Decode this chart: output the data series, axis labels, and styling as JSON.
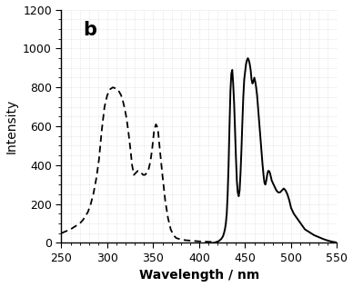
{
  "title": "b",
  "xlabel": "Wavelength / nm",
  "ylabel": "Intensity",
  "xlim": [
    250,
    550
  ],
  "ylim": [
    0,
    1200
  ],
  "xticks": [
    250,
    300,
    350,
    400,
    450,
    500,
    550
  ],
  "yticks": [
    0,
    200,
    400,
    600,
    800,
    1000,
    1200
  ],
  "dashed_x": [
    250,
    255,
    260,
    265,
    270,
    273,
    276,
    279,
    282,
    285,
    288,
    291,
    294,
    297,
    300,
    303,
    306,
    309,
    312,
    315,
    317,
    319,
    321,
    323,
    325,
    327,
    329,
    331,
    333,
    335,
    337,
    339,
    341,
    343,
    345,
    347,
    349,
    351,
    353,
    355,
    357,
    360,
    363,
    366,
    369,
    372,
    375,
    380,
    385,
    390,
    395,
    400,
    405,
    410,
    415,
    420
  ],
  "dashed_y": [
    50,
    60,
    70,
    85,
    100,
    115,
    135,
    160,
    200,
    255,
    330,
    430,
    580,
    700,
    760,
    790,
    800,
    795,
    785,
    760,
    730,
    690,
    640,
    570,
    490,
    400,
    350,
    360,
    370,
    370,
    360,
    350,
    350,
    360,
    380,
    420,
    490,
    580,
    610,
    590,
    490,
    350,
    220,
    130,
    70,
    40,
    25,
    18,
    14,
    12,
    10,
    8,
    7,
    6,
    5,
    4
  ],
  "solid_x": [
    415,
    418,
    420,
    422,
    424,
    426,
    427,
    428,
    429,
    430,
    431,
    432,
    433,
    434,
    435,
    436,
    437,
    438,
    439,
    440,
    441,
    442,
    443,
    444,
    445,
    446,
    447,
    448,
    449,
    450,
    451,
    452,
    453,
    454,
    455,
    456,
    457,
    458,
    459,
    460,
    461,
    462,
    463,
    464,
    465,
    466,
    467,
    468,
    469,
    470,
    471,
    472,
    473,
    474,
    475,
    476,
    477,
    478,
    479,
    480,
    481,
    482,
    484,
    486,
    488,
    490,
    492,
    494,
    496,
    498,
    500,
    503,
    506,
    509,
    512,
    515,
    520,
    525,
    530,
    535,
    540,
    545,
    550
  ],
  "solid_y": [
    0,
    3,
    6,
    12,
    20,
    35,
    50,
    70,
    100,
    150,
    250,
    400,
    600,
    780,
    870,
    890,
    820,
    720,
    580,
    440,
    320,
    260,
    240,
    270,
    360,
    480,
    620,
    750,
    840,
    880,
    920,
    940,
    950,
    940,
    920,
    890,
    840,
    820,
    830,
    850,
    830,
    800,
    760,
    700,
    640,
    580,
    520,
    460,
    400,
    350,
    310,
    300,
    320,
    350,
    370,
    370,
    360,
    340,
    320,
    310,
    300,
    290,
    270,
    260,
    260,
    270,
    280,
    270,
    250,
    220,
    180,
    150,
    130,
    110,
    90,
    70,
    55,
    40,
    30,
    20,
    12,
    6,
    2
  ],
  "background_color": "#ffffff",
  "grid_color": "#c8c8c8",
  "line_color": "#000000",
  "title_fontsize": 15,
  "label_fontsize": 10,
  "tick_fontsize": 9
}
